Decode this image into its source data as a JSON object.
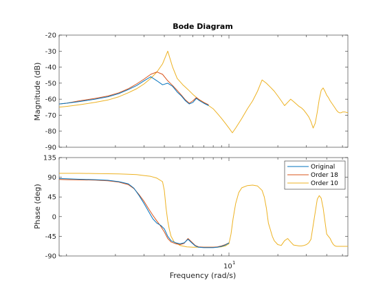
{
  "chart_data": {
    "type": "line",
    "title": "Bode Diagram",
    "xlabel": "Frequency  (rad/s)",
    "xscale": "log",
    "xlim": [
      0.9,
      54
    ],
    "xtick_labels": [
      {
        "value": 10,
        "base": "10",
        "exp": "1"
      }
    ],
    "legend": {
      "placement": "top-right",
      "entries": [
        "Original",
        "Order 18",
        "Order 10"
      ]
    },
    "series_colors": {
      "Original": "#0072bd",
      "Order 18": "#d95319",
      "Order 10": "#edb120"
    },
    "panels": [
      {
        "name": "magnitude",
        "ylabel": "Magnitude (dB)",
        "ylim": [
          -90,
          -20
        ],
        "yticks": [
          "-90",
          "-80",
          "-70",
          "-60",
          "-50",
          "-40",
          "-30",
          "-20"
        ],
        "series": [
          {
            "name": "Original",
            "x": [
              0.9,
              1.0,
              1.2,
              1.5,
              1.8,
              2.1,
              2.4,
              2.7,
              3.0,
              3.3,
              3.6,
              3.9,
              4.2,
              4.5,
              4.8,
              5.1,
              5.4,
              5.7,
              6.0,
              6.3,
              6.6,
              7.0,
              7.5
            ],
            "y": [
              -63,
              -62.5,
              -61.5,
              -60,
              -58.5,
              -56.5,
              -54,
              -51.5,
              -48.5,
              -46,
              -48.5,
              -51,
              -50,
              -52,
              -55.5,
              -58,
              -61,
              -63,
              -62,
              -59.5,
              -61,
              -62.5,
              -64
            ]
          },
          {
            "name": "Order 18",
            "x": [
              0.9,
              1.0,
              1.2,
              1.5,
              1.8,
              2.1,
              2.4,
              2.7,
              3.0,
              3.3,
              3.6,
              3.9,
              4.2,
              4.5,
              4.8,
              5.1,
              5.4,
              5.7,
              6.0,
              6.3,
              6.6,
              7.0,
              7.5
            ],
            "y": [
              -63,
              -62.5,
              -61,
              -59.5,
              -58,
              -56,
              -53.5,
              -50.5,
              -47.5,
              -44.5,
              -43,
              -44.5,
              -48.5,
              -51.5,
              -54.5,
              -57.5,
              -60.5,
              -62.5,
              -61,
              -59,
              -60.5,
              -62,
              -63.5
            ]
          },
          {
            "name": "Order 10",
            "x": [
              0.9,
              1.0,
              1.2,
              1.5,
              1.8,
              2.1,
              2.4,
              2.7,
              3.0,
              3.3,
              3.6,
              3.9,
              4.2,
              4.5,
              4.8,
              5.2,
              5.6,
              6.0,
              6.5,
              7.0,
              7.5,
              8.0,
              8.5,
              9.0,
              9.5,
              10.0,
              10.5,
              11.0,
              12.0,
              13.0,
              14.0,
              15.0,
              16.0,
              17.0,
              18.0,
              19.0,
              20.0,
              21.0,
              22.0,
              23.0,
              24.0,
              25.0,
              26.0,
              27.0,
              28.0,
              29.0,
              30.0,
              31.0,
              32.0,
              33.0,
              34.0,
              35.0,
              36.0,
              37.0,
              38.0,
              39.0,
              40.0,
              41.0,
              42.0,
              43.0,
              44.0,
              45.0,
              46.0,
              47.0,
              48.0,
              49.0,
              50.0,
              52.0,
              54.0
            ],
            "y": [
              -65,
              -64.5,
              -63.5,
              -62,
              -60.5,
              -58.5,
              -56,
              -53.5,
              -50.5,
              -47,
              -43,
              -38,
              -30,
              -40,
              -47,
              -51,
              -54,
              -57,
              -60,
              -62,
              -64,
              -66,
              -69,
              -72,
              -75,
              -78,
              -81,
              -78,
              -72,
              -66,
              -61,
              -55,
              -48,
              -50,
              -52.5,
              -55,
              -58,
              -61,
              -64,
              -62,
              -60,
              -61.5,
              -63,
              -64.5,
              -65.5,
              -67,
              -69,
              -71,
              -74,
              -78,
              -75,
              -68,
              -60,
              -54.5,
              -53,
              -55,
              -57.5,
              -59,
              -61,
              -62.5,
              -64,
              -65.5,
              -67,
              -68,
              -68.5,
              -68.5,
              -68,
              -68,
              -68.5
            ]
          }
        ]
      },
      {
        "name": "phase",
        "ylabel": "Phase (deg)",
        "ylim": [
          -90,
          135
        ],
        "yticks": [
          "-90",
          "-45",
          "0",
          "45",
          "90",
          "135"
        ],
        "series": [
          {
            "name": "Original",
            "x": [
              0.9,
              1.0,
              1.2,
              1.5,
              1.8,
              2.1,
              2.4,
              2.6,
              2.8,
              3.0,
              3.2,
              3.4,
              3.6,
              3.8,
              4.0,
              4.2,
              4.4,
              4.7,
              5.0,
              5.3,
              5.6,
              5.9,
              6.2,
              6.5,
              7.0,
              7.5,
              8.0,
              8.5,
              9.0,
              9.5,
              10.0
            ],
            "y": [
              87,
              86.5,
              85.5,
              84.5,
              83,
              80,
              75,
              65,
              48,
              30,
              12,
              -5,
              -15,
              -20,
              -28,
              -45,
              -55,
              -60,
              -62,
              -60,
              -52,
              -60,
              -67,
              -70,
              -71,
              -71,
              -71,
              -70,
              -68,
              -65,
              -60
            ]
          },
          {
            "name": "Order 18",
            "x": [
              0.9,
              1.0,
              1.2,
              1.5,
              1.8,
              2.1,
              2.4,
              2.6,
              2.8,
              3.0,
              3.2,
              3.4,
              3.6,
              3.8,
              4.0,
              4.2,
              4.4,
              4.7,
              5.0,
              5.3,
              5.6,
              5.9,
              6.2,
              6.5,
              7.0,
              7.5,
              8.0,
              8.5,
              9.0,
              9.5,
              10.0
            ],
            "y": [
              85,
              84.5,
              84,
              83.5,
              82,
              79,
              73,
              64,
              50,
              35,
              18,
              3,
              -10,
              -22,
              -35,
              -50,
              -58,
              -62,
              -64,
              -61,
              -50,
              -58,
              -66,
              -69,
              -70,
              -70,
              -70,
              -69,
              -67,
              -64,
              -60
            ]
          },
          {
            "name": "Order 10",
            "x": [
              0.9,
              1.0,
              1.2,
              1.5,
              1.8,
              2.1,
              2.4,
              2.7,
              3.0,
              3.3,
              3.6,
              3.9,
              4.0,
              4.1,
              4.2,
              4.3,
              4.4,
              4.6,
              5.0,
              5.5,
              6.0,
              6.5,
              7.0,
              7.5,
              8.0,
              8.5,
              9.0,
              9.5,
              10.0,
              10.3,
              10.6,
              11.0,
              11.5,
              12.0,
              13.0,
              14.0,
              15.0,
              16.0,
              16.5,
              17.0,
              17.5,
              18.0,
              18.5,
              19.0,
              20.0,
              21.0,
              22.0,
              23.0,
              24.0,
              25.0,
              26.0,
              27.0,
              28.0,
              29.0,
              30.0,
              31.0,
              32.0,
              33.0,
              34.0,
              35.0,
              36.0,
              37.0,
              38.0,
              39.0,
              40.0,
              41.0,
              42.0,
              43.0,
              44.0,
              45.0,
              46.0,
              47.0,
              48.0,
              49.0,
              50.0,
              52.0,
              54.0
            ],
            "y": [
              99,
              99,
              99,
              98.5,
              98,
              97.5,
              97,
              96,
              94,
              92,
              88,
              80,
              60,
              20,
              -10,
              -30,
              -45,
              -58,
              -66,
              -69,
              -70,
              -70,
              -70,
              -70,
              -70,
              -70,
              -69,
              -67,
              -62,
              -40,
              -5,
              30,
              55,
              66,
              71,
              72,
              70,
              60,
              45,
              20,
              -15,
              -30,
              -45,
              -55,
              -64,
              -66,
              -55,
              -50,
              -58,
              -65,
              -66,
              -67,
              -67,
              -66,
              -64,
              -60,
              -52,
              -20,
              10,
              40,
              48,
              42,
              20,
              -10,
              -40,
              -45,
              -50,
              -58,
              -64,
              -67,
              -68,
              -68,
              -68,
              -68,
              -68,
              -68,
              -68
            ]
          }
        ]
      }
    ]
  }
}
